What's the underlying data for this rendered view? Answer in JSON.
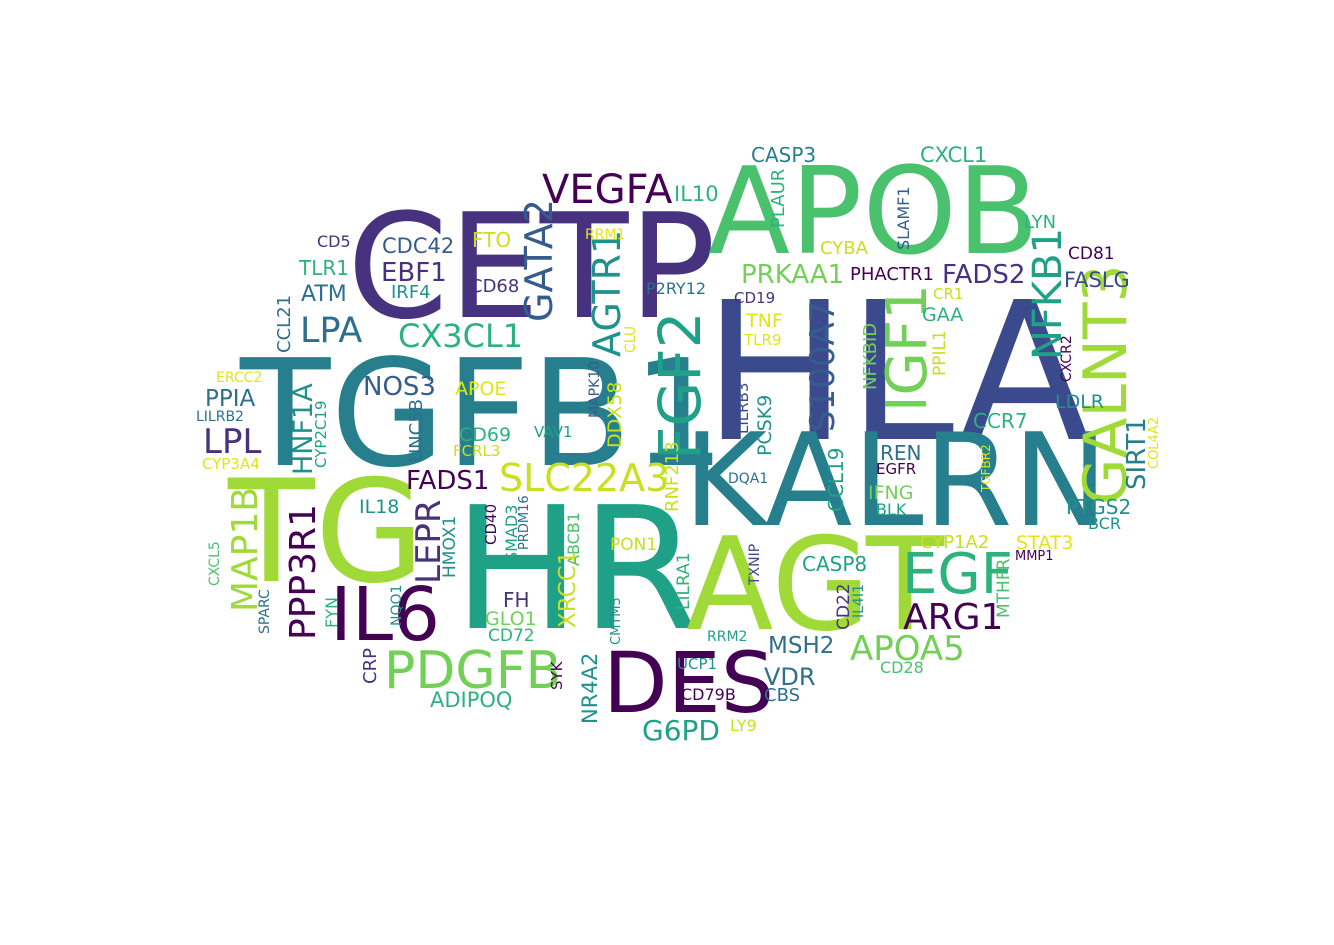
{
  "colors": {
    "dark_purple": "#440154",
    "purple": "#46327e",
    "indigo": "#3b4a8c",
    "blue": "#365c8d",
    "steel": "#2e6f8e",
    "teal": "#277f8e",
    "teal_green": "#21918c",
    "green_teal": "#1fa187",
    "green": "#2db27d",
    "mid_green": "#4ac16d",
    "light_green": "#73d056",
    "lime": "#a0da39",
    "yellow_green": "#c8e020",
    "yellow": "#e3e418"
  },
  "words": [
    {
      "text": "HLA",
      "color": "indigo"
    },
    {
      "text": "TGFB1",
      "color": "teal"
    },
    {
      "text": "CETP",
      "color": "purple"
    },
    {
      "text": "APOB",
      "color": "mid_green"
    },
    {
      "text": "HR",
      "color": "green_teal"
    },
    {
      "text": "KALRN",
      "color": "teal"
    },
    {
      "text": "TG",
      "color": "lime"
    },
    {
      "text": "AGT",
      "color": "lime"
    },
    {
      "text": "DES",
      "color": "dark_purple"
    },
    {
      "text": "IL6",
      "color": "dark_purple"
    },
    {
      "text": "FGF2",
      "color": "green_teal"
    },
    {
      "text": "IGF1",
      "color": "light_green"
    },
    {
      "text": "GALNT3",
      "color": "lime"
    },
    {
      "text": "EGF",
      "color": "green"
    },
    {
      "text": "PDGFB",
      "color": "light_green"
    },
    {
      "text": "VEGFA",
      "color": "dark_purple"
    },
    {
      "text": "SLC22A3",
      "color": "yellow_green"
    },
    {
      "text": "GATA2",
      "color": "blue"
    },
    {
      "text": "AGTR1",
      "color": "teal_green"
    },
    {
      "text": "NFKB1",
      "color": "green_teal"
    },
    {
      "text": "S100A7",
      "color": "blue"
    },
    {
      "text": "APOA5",
      "color": "light_green"
    },
    {
      "text": "ARG1",
      "color": "dark_purple"
    },
    {
      "text": "LPA",
      "color": "steel"
    },
    {
      "text": "CX3CL1",
      "color": "green"
    },
    {
      "text": "MAP1B",
      "color": "lime"
    },
    {
      "text": "PPP3R1",
      "color": "dark_purple"
    },
    {
      "text": "LEPR",
      "color": "purple"
    },
    {
      "text": "LPL",
      "color": "purple"
    },
    {
      "text": "HNF1A",
      "color": "teal_green"
    },
    {
      "text": "NOS3",
      "color": "blue"
    },
    {
      "text": "FADS1",
      "color": "dark_purple"
    },
    {
      "text": "FADS2",
      "color": "purple"
    },
    {
      "text": "PRKAA1",
      "color": "light_green"
    },
    {
      "text": "CASP3",
      "color": "teal"
    },
    {
      "text": "CXCL1",
      "color": "green"
    },
    {
      "text": "IL10",
      "color": "green"
    },
    {
      "text": "EBF1",
      "color": "purple"
    },
    {
      "text": "CDC42",
      "color": "blue"
    },
    {
      "text": "FTO",
      "color": "yellow_green"
    },
    {
      "text": "RRM1",
      "color": "yellow"
    },
    {
      "text": "PLAUR",
      "color": "green"
    },
    {
      "text": "SLAMF1",
      "color": "blue"
    },
    {
      "text": "LYN",
      "color": "green"
    },
    {
      "text": "CD81",
      "color": "dark_purple"
    },
    {
      "text": "FASLG",
      "color": "indigo"
    },
    {
      "text": "CYBA",
      "color": "yellow_green"
    },
    {
      "text": "PHACTR1",
      "color": "dark_purple"
    },
    {
      "text": "CR1",
      "color": "yellow_green"
    },
    {
      "text": "GAA",
      "color": "green"
    },
    {
      "text": "CD5",
      "color": "purple"
    },
    {
      "text": "TLR1",
      "color": "green"
    },
    {
      "text": "ATM",
      "color": "steel"
    },
    {
      "text": "IRF4",
      "color": "teal_green"
    },
    {
      "text": "CD68",
      "color": "purple"
    },
    {
      "text": "P2RY12",
      "color": "steel"
    },
    {
      "text": "CD19",
      "color": "purple"
    },
    {
      "text": "TNF",
      "color": "yellow"
    },
    {
      "text": "TLR9",
      "color": "yellow"
    },
    {
      "text": "NFKBID",
      "color": "light_green"
    },
    {
      "text": "PPIL1",
      "color": "yellow_green"
    },
    {
      "text": "CXCR2",
      "color": "dark_purple"
    },
    {
      "text": "LDLR",
      "color": "teal_green"
    },
    {
      "text": "SIRT1",
      "color": "teal"
    },
    {
      "text": "COL4A2",
      "color": "yellow"
    },
    {
      "text": "CCL21",
      "color": "steel"
    },
    {
      "text": "CLU",
      "color": "yellow"
    },
    {
      "text": "ERCC2",
      "color": "yellow"
    },
    {
      "text": "PPIA",
      "color": "steel"
    },
    {
      "text": "LILRB2",
      "color": "steel"
    },
    {
      "text": "CYP2C19",
      "color": "green_teal"
    },
    {
      "text": "UNC5B",
      "color": "steel"
    },
    {
      "text": "APOE",
      "color": "yellow"
    },
    {
      "text": "MAPK10",
      "color": "blue"
    },
    {
      "text": "DDX58",
      "color": "yellow_green"
    },
    {
      "text": "LILRB3",
      "color": "indigo"
    },
    {
      "text": "PCSK9",
      "color": "teal_green"
    },
    {
      "text": "CCR7",
      "color": "green"
    },
    {
      "text": "TGFBR2",
      "color": "yellow"
    },
    {
      "text": "CYP3A4",
      "color": "yellow"
    },
    {
      "text": "CD69",
      "color": "green"
    },
    {
      "text": "FCRL3",
      "color": "yellow_green"
    },
    {
      "text": "VAV1",
      "color": "green_teal"
    },
    {
      "text": "RNF213",
      "color": "yellow_green"
    },
    {
      "text": "DQA1",
      "color": "steel"
    },
    {
      "text": "CCL19",
      "color": "green_teal"
    },
    {
      "text": "REN",
      "color": "steel"
    },
    {
      "text": "EGFR",
      "color": "dark_purple"
    },
    {
      "text": "IFNG",
      "color": "light_green"
    },
    {
      "text": "BLK",
      "color": "green_teal"
    },
    {
      "text": "PTGS2",
      "color": "teal_green"
    },
    {
      "text": "BCR",
      "color": "teal_green"
    },
    {
      "text": "CYP1A2",
      "color": "yellow_green"
    },
    {
      "text": "STAT3",
      "color": "yellow"
    },
    {
      "text": "MMP1",
      "color": "dark_purple"
    },
    {
      "text": "IL18",
      "color": "teal_green"
    },
    {
      "text": "CD40",
      "color": "dark_purple"
    },
    {
      "text": "SMAD3",
      "color": "green_teal"
    },
    {
      "text": "PRDM16",
      "color": "steel"
    },
    {
      "text": "ABCB1",
      "color": "mid_green"
    },
    {
      "text": "PON1",
      "color": "yellow_green"
    },
    {
      "text": "TXNIP",
      "color": "indigo"
    },
    {
      "text": "CASP8",
      "color": "green_teal"
    },
    {
      "text": "CD22",
      "color": "purple"
    },
    {
      "text": "IL4I1",
      "color": "teal_green"
    },
    {
      "text": "MTHFR",
      "color": "mid_green"
    },
    {
      "text": "HMOX1",
      "color": "teal_green"
    },
    {
      "text": "CXCL5",
      "color": "mid_green"
    },
    {
      "text": "SPARC",
      "color": "steel"
    },
    {
      "text": "FYN",
      "color": "green"
    },
    {
      "text": "NQO1",
      "color": "teal_green"
    },
    {
      "text": "XRCC1",
      "color": "yellow_green"
    },
    {
      "text": "FH",
      "color": "purple"
    },
    {
      "text": "GLO1",
      "color": "light_green"
    },
    {
      "text": "CD72",
      "color": "green"
    },
    {
      "text": "CMTM5",
      "color": "teal_green"
    },
    {
      "text": "LILRA1",
      "color": "green"
    },
    {
      "text": "RRM2",
      "color": "green_teal"
    },
    {
      "text": "MSH2",
      "color": "steel"
    },
    {
      "text": "CD28",
      "color": "mid_green"
    },
    {
      "text": "CRP",
      "color": "purple"
    },
    {
      "text": "ADIPOQ",
      "color": "green"
    },
    {
      "text": "SYK",
      "color": "dark_purple"
    },
    {
      "text": "NR4A2",
      "color": "teal_green"
    },
    {
      "text": "UCP1",
      "color": "teal_green"
    },
    {
      "text": "CD79B",
      "color": "dark_purple"
    },
    {
      "text": "CBS",
      "color": "steel"
    },
    {
      "text": "VDR",
      "color": "steel"
    },
    {
      "text": "G6PD",
      "color": "green_teal"
    },
    {
      "text": "LY9",
      "color": "yellow_green"
    }
  ]
}
